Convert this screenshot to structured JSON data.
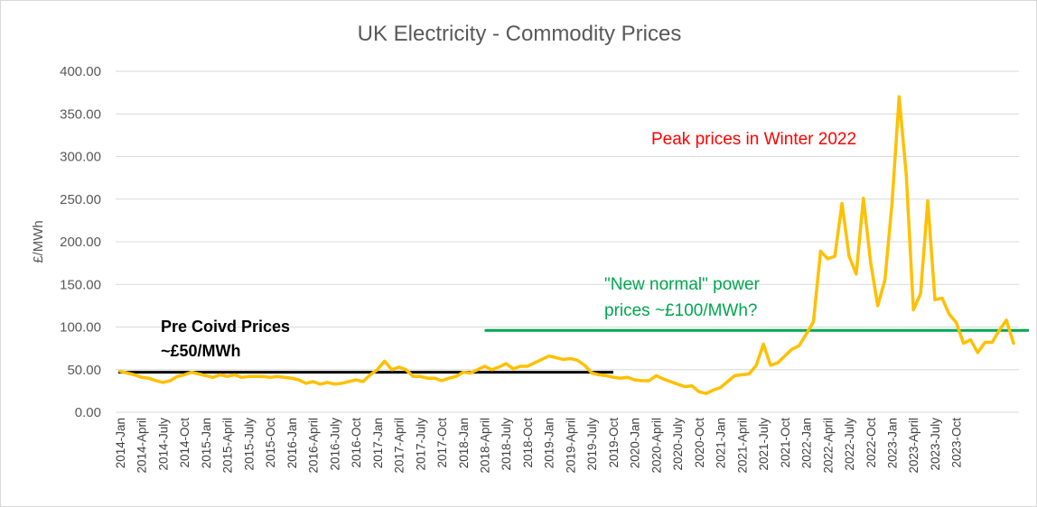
{
  "chart_data": {
    "type": "line",
    "title": "UK Electricity - Commodity Prices",
    "ylabel": "£/MWh",
    "xlabel": "",
    "ylim": [
      0,
      400
    ],
    "yticks": [
      0,
      50,
      100,
      150,
      200,
      250,
      300,
      350,
      400
    ],
    "ytick_labels": [
      "0.00",
      "50.00",
      "100.00",
      "150.00",
      "200.00",
      "250.00",
      "300.00",
      "350.00",
      "400.00"
    ],
    "grid": "horizontal",
    "legend": "none",
    "x_labels": [
      "2014-Jan",
      "2014-April",
      "2014-July",
      "2014-Oct",
      "2015-Jan",
      "2015-April",
      "2015-July",
      "2015-Oct",
      "2016-Jan",
      "2016-April",
      "2016-July",
      "2016-Oct",
      "2017-Jan",
      "2017-April",
      "2017-July",
      "2017-Oct",
      "2018-Jan",
      "2018-April",
      "2018-July",
      "2018-Oct",
      "2019-Jan",
      "2019-April",
      "2019-July",
      "2019-Oct",
      "2020-Jan",
      "2020-April",
      "2020-July",
      "2020-Oct",
      "2021-Jan",
      "2021-April",
      "2021-July",
      "2021-Oct",
      "2022-Jan",
      "2022-April",
      "2022-July",
      "2022-Oct",
      "2023-Jan",
      "2023-April",
      "2023-July",
      "2023-Oct"
    ],
    "series": [
      {
        "color": "#ffc000",
        "values": [
          48,
          46,
          44,
          41,
          40,
          37,
          35,
          37,
          42,
          44,
          47,
          45,
          43,
          41,
          44,
          42,
          44,
          41,
          42,
          42,
          42,
          41,
          42,
          41,
          40,
          38,
          34,
          36,
          33,
          35,
          33,
          34,
          36,
          38,
          36,
          44,
          50,
          60,
          50,
          53,
          50,
          42,
          42,
          40,
          40,
          37,
          40,
          42,
          47,
          46,
          50,
          54,
          50,
          53,
          57,
          51,
          54,
          54,
          58,
          62,
          66,
          64,
          62,
          63,
          61,
          55,
          46,
          44,
          43,
          41,
          40,
          41,
          38,
          37,
          37,
          43,
          39,
          36,
          33,
          30,
          31,
          24,
          22,
          26,
          29,
          36,
          43,
          44,
          45,
          55,
          80,
          55,
          58,
          66,
          74,
          78,
          92,
          106,
          189,
          180,
          183,
          245,
          183,
          162,
          251,
          176,
          125,
          155,
          245,
          370,
          278,
          120,
          139,
          248,
          132,
          134,
          115,
          105,
          81,
          85,
          70,
          82,
          82,
          96,
          108,
          81
        ]
      }
    ],
    "annotations": {
      "peak": "Peak prices in Winter 2022",
      "new_normal_line1": "\"New normal\" power",
      "new_normal_line2": "prices ~£100/MWh?",
      "pre_covid_line1": "Pre Coivd Prices",
      "pre_covid_line2": "~£50/MWh"
    },
    "reference_lines": [
      {
        "color": "#000000",
        "value": 47,
        "from": "2014-Jan",
        "to": "2019-Oct"
      },
      {
        "color": "#00a650",
        "value": 96,
        "from": "2018-April",
        "to": "2023-Oct"
      }
    ]
  }
}
